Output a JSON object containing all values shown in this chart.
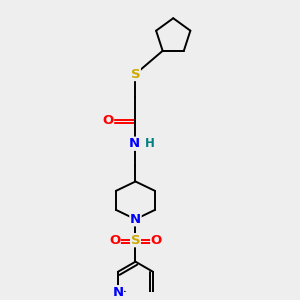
{
  "background_color": "#eeeeee",
  "fig_size": [
    3.0,
    3.0
  ],
  "dpi": 100,
  "bond_color": "black",
  "bond_lw": 1.4,
  "atom_colors": {
    "O": "#ff0000",
    "N": "#0000ff",
    "S_thio": "#ccaa00",
    "S_sulfonyl": "#ccaa00",
    "H": "#008080",
    "C": "black"
  },
  "font_size": 8.5,
  "xlim": [
    0,
    10
  ],
  "ylim": [
    0,
    10
  ]
}
